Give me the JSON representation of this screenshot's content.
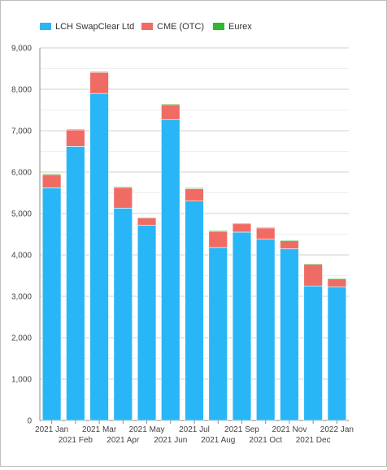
{
  "chart_data": {
    "type": "bar",
    "stacked": true,
    "categories": [
      "2021 Jan",
      "2021 Feb",
      "2021 Mar",
      "2021 Apr",
      "2021 May",
      "2021 Jun",
      "2021 Jul",
      "2021 Aug",
      "2021 Sep",
      "2021 Oct",
      "2021 Nov",
      "2021 Dec",
      "2022 Jan"
    ],
    "series": [
      {
        "name": "LCH SwapClear Ltd",
        "color": "#29b6f6",
        "values": [
          5620,
          6620,
          7900,
          5130,
          4720,
          7270,
          5300,
          4180,
          4550,
          4380,
          4150,
          3250,
          3230
        ]
      },
      {
        "name": "CME (OTC)",
        "color": "#f06b63",
        "values": [
          320,
          400,
          510,
          500,
          170,
          360,
          300,
          390,
          200,
          270,
          190,
          520,
          190
        ]
      },
      {
        "name": "Eurex",
        "color": "#2eb82e",
        "values": [
          20,
          20,
          20,
          20,
          20,
          20,
          20,
          20,
          20,
          20,
          20,
          20,
          20
        ]
      }
    ],
    "ylim": [
      0,
      9000
    ],
    "yticks": [
      "0",
      "1,000",
      "2,000",
      "3,000",
      "4,000",
      "5,000",
      "6,000",
      "7,000",
      "8,000",
      "9,000"
    ],
    "legend_position": "top-left",
    "grid": true
  }
}
